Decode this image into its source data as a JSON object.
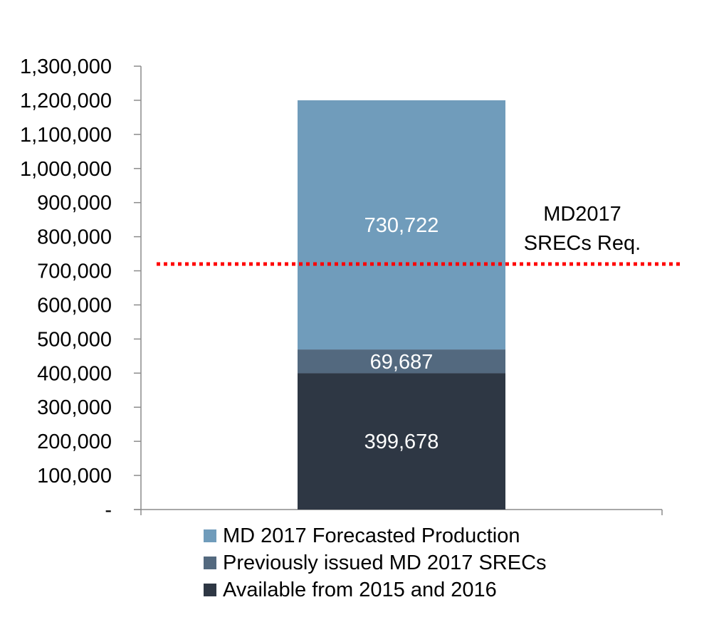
{
  "chart_data": {
    "type": "bar",
    "stacked": true,
    "categories": [
      ""
    ],
    "series": [
      {
        "name": "Available from 2015 and 2016",
        "values": [
          399678
        ],
        "label": "399,678",
        "color": "#2e3744"
      },
      {
        "name": "Previously issued MD 2017 SRECs",
        "values": [
          69687
        ],
        "label": "69,687",
        "color": "#53697f"
      },
      {
        "name": "MD 2017 Forecasted Production",
        "values": [
          730722
        ],
        "label": "730,722",
        "color": "#709cbb"
      }
    ],
    "ylim": [
      0,
      1300000
    ],
    "yticks": [
      0,
      100000,
      200000,
      300000,
      400000,
      500000,
      600000,
      700000,
      800000,
      900000,
      1000000,
      1100000,
      1200000,
      1300000
    ],
    "ytick_labels": [
      "-",
      "100,000",
      "200,000",
      "300,000",
      "400,000",
      "500,000",
      "600,000",
      "700,000",
      "800,000",
      "900,000",
      "1,000,000",
      "1,100,000",
      "1,200,000",
      "1,300,000"
    ],
    "reference_line": {
      "value": 720000,
      "label_lines": [
        "MD2017",
        "SRECs Req."
      ],
      "color": "#ff0000",
      "style": "dotted"
    },
    "legend": {
      "placement": "bottom",
      "order": [
        2,
        1,
        0
      ]
    },
    "grid": false
  }
}
